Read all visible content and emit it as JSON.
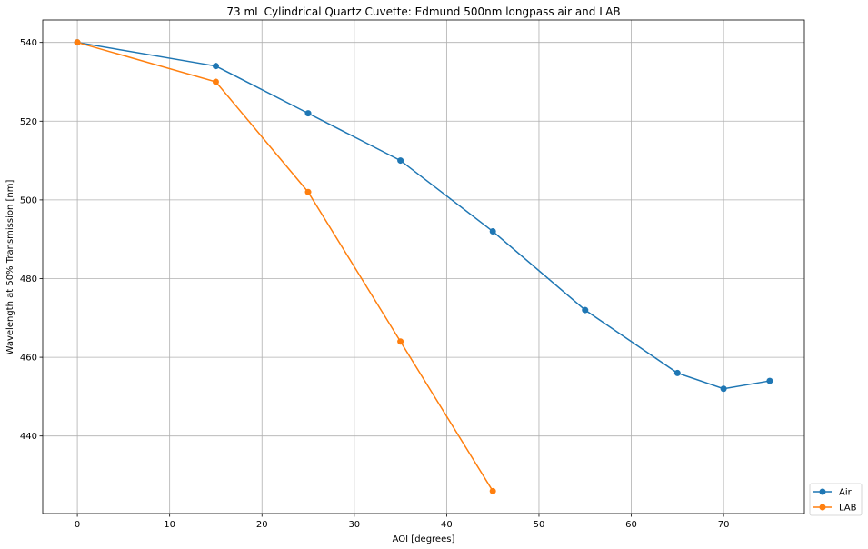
{
  "chart_data": {
    "type": "line",
    "title": "73 mL Cylindrical Quartz Cuvette: Edmund 500nm longpass air and LAB",
    "xlabel": "AOI [degrees]",
    "ylabel": "Wavelength at 50% Transmission [nm]",
    "xlim": [
      -3.75,
      78.75
    ],
    "ylim": [
      420.3,
      545.7
    ],
    "xticks": [
      0,
      10,
      20,
      30,
      40,
      50,
      60,
      70
    ],
    "yticks": [
      440,
      460,
      480,
      500,
      520,
      540
    ],
    "grid": true,
    "legend_position": "outside-lower-right",
    "series": [
      {
        "name": "Air",
        "color": "#1f77b4",
        "marker": "circle",
        "x": [
          0,
          15,
          25,
          35,
          45,
          55,
          65,
          70,
          75
        ],
        "y": [
          540,
          534,
          522,
          510,
          492,
          472,
          456,
          452,
          454
        ]
      },
      {
        "name": "LAB",
        "color": "#ff7f0e",
        "marker": "circle",
        "x": [
          0,
          15,
          25,
          35,
          45
        ],
        "y": [
          540,
          530,
          502,
          464,
          426
        ]
      }
    ]
  }
}
